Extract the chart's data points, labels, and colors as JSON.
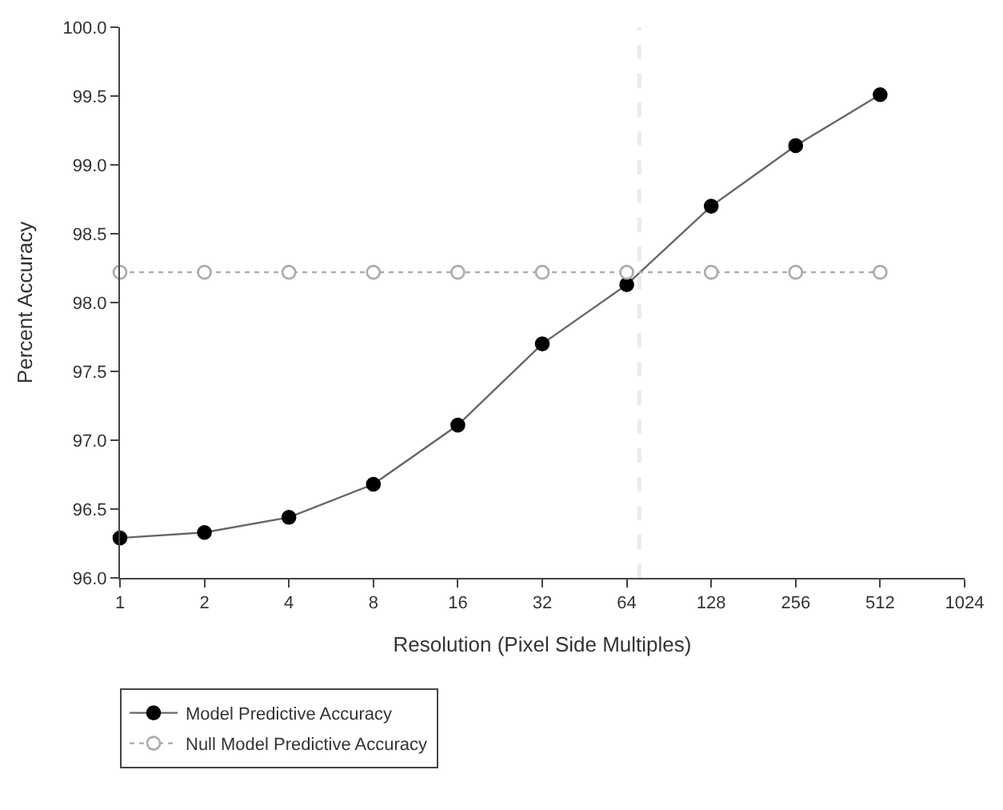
{
  "chart_data": {
    "type": "line",
    "xlabel": "Resolution (Pixel Side Multiples)",
    "ylabel": "Percent Accuracy",
    "x": [
      1,
      2,
      4,
      8,
      16,
      32,
      64,
      128,
      256,
      512
    ],
    "series": [
      {
        "name": "Model Predictive Accuracy",
        "color": "#000000",
        "values": [
          96.29,
          96.33,
          96.44,
          96.68,
          97.11,
          97.7,
          98.13,
          98.7,
          99.14,
          99.51
        ],
        "marker": "circle",
        "line_style": "solid"
      },
      {
        "name": "Null Model Predictive Accuracy",
        "color": "#aaaaaa",
        "values": [
          98.22,
          98.22,
          98.22,
          98.22,
          98.22,
          98.22,
          98.22,
          98.22,
          98.22,
          98.22
        ],
        "marker": "circle-open",
        "line_style": "dotted"
      }
    ],
    "log": "x",
    "xlim": [
      1,
      1024
    ],
    "xticks": [
      1,
      2,
      4,
      8,
      16,
      32,
      64,
      128,
      256,
      512,
      1024
    ],
    "ylim": [
      96.0,
      100.0
    ],
    "yticks": [
      {
        "value": 96,
        "label": "96.0"
      },
      {
        "value": 96.5,
        "label": "96.5"
      },
      {
        "value": 97,
        "label": "97.0"
      },
      {
        "value": 97.5,
        "label": "97.5"
      },
      {
        "value": 98,
        "label": "98.0"
      },
      {
        "value": 98.5,
        "label": "98.5"
      },
      {
        "value": 99,
        "label": "99.0"
      },
      {
        "value": 99.5,
        "label": "99.5"
      },
      {
        "value": 100,
        "label": "100.0"
      }
    ],
    "ref_lines": [
      {
        "axis": "x",
        "value": 71,
        "color": "#c0c0c0",
        "line_style": "dashed"
      }
    ],
    "grid": false,
    "legend": "bottom left"
  }
}
